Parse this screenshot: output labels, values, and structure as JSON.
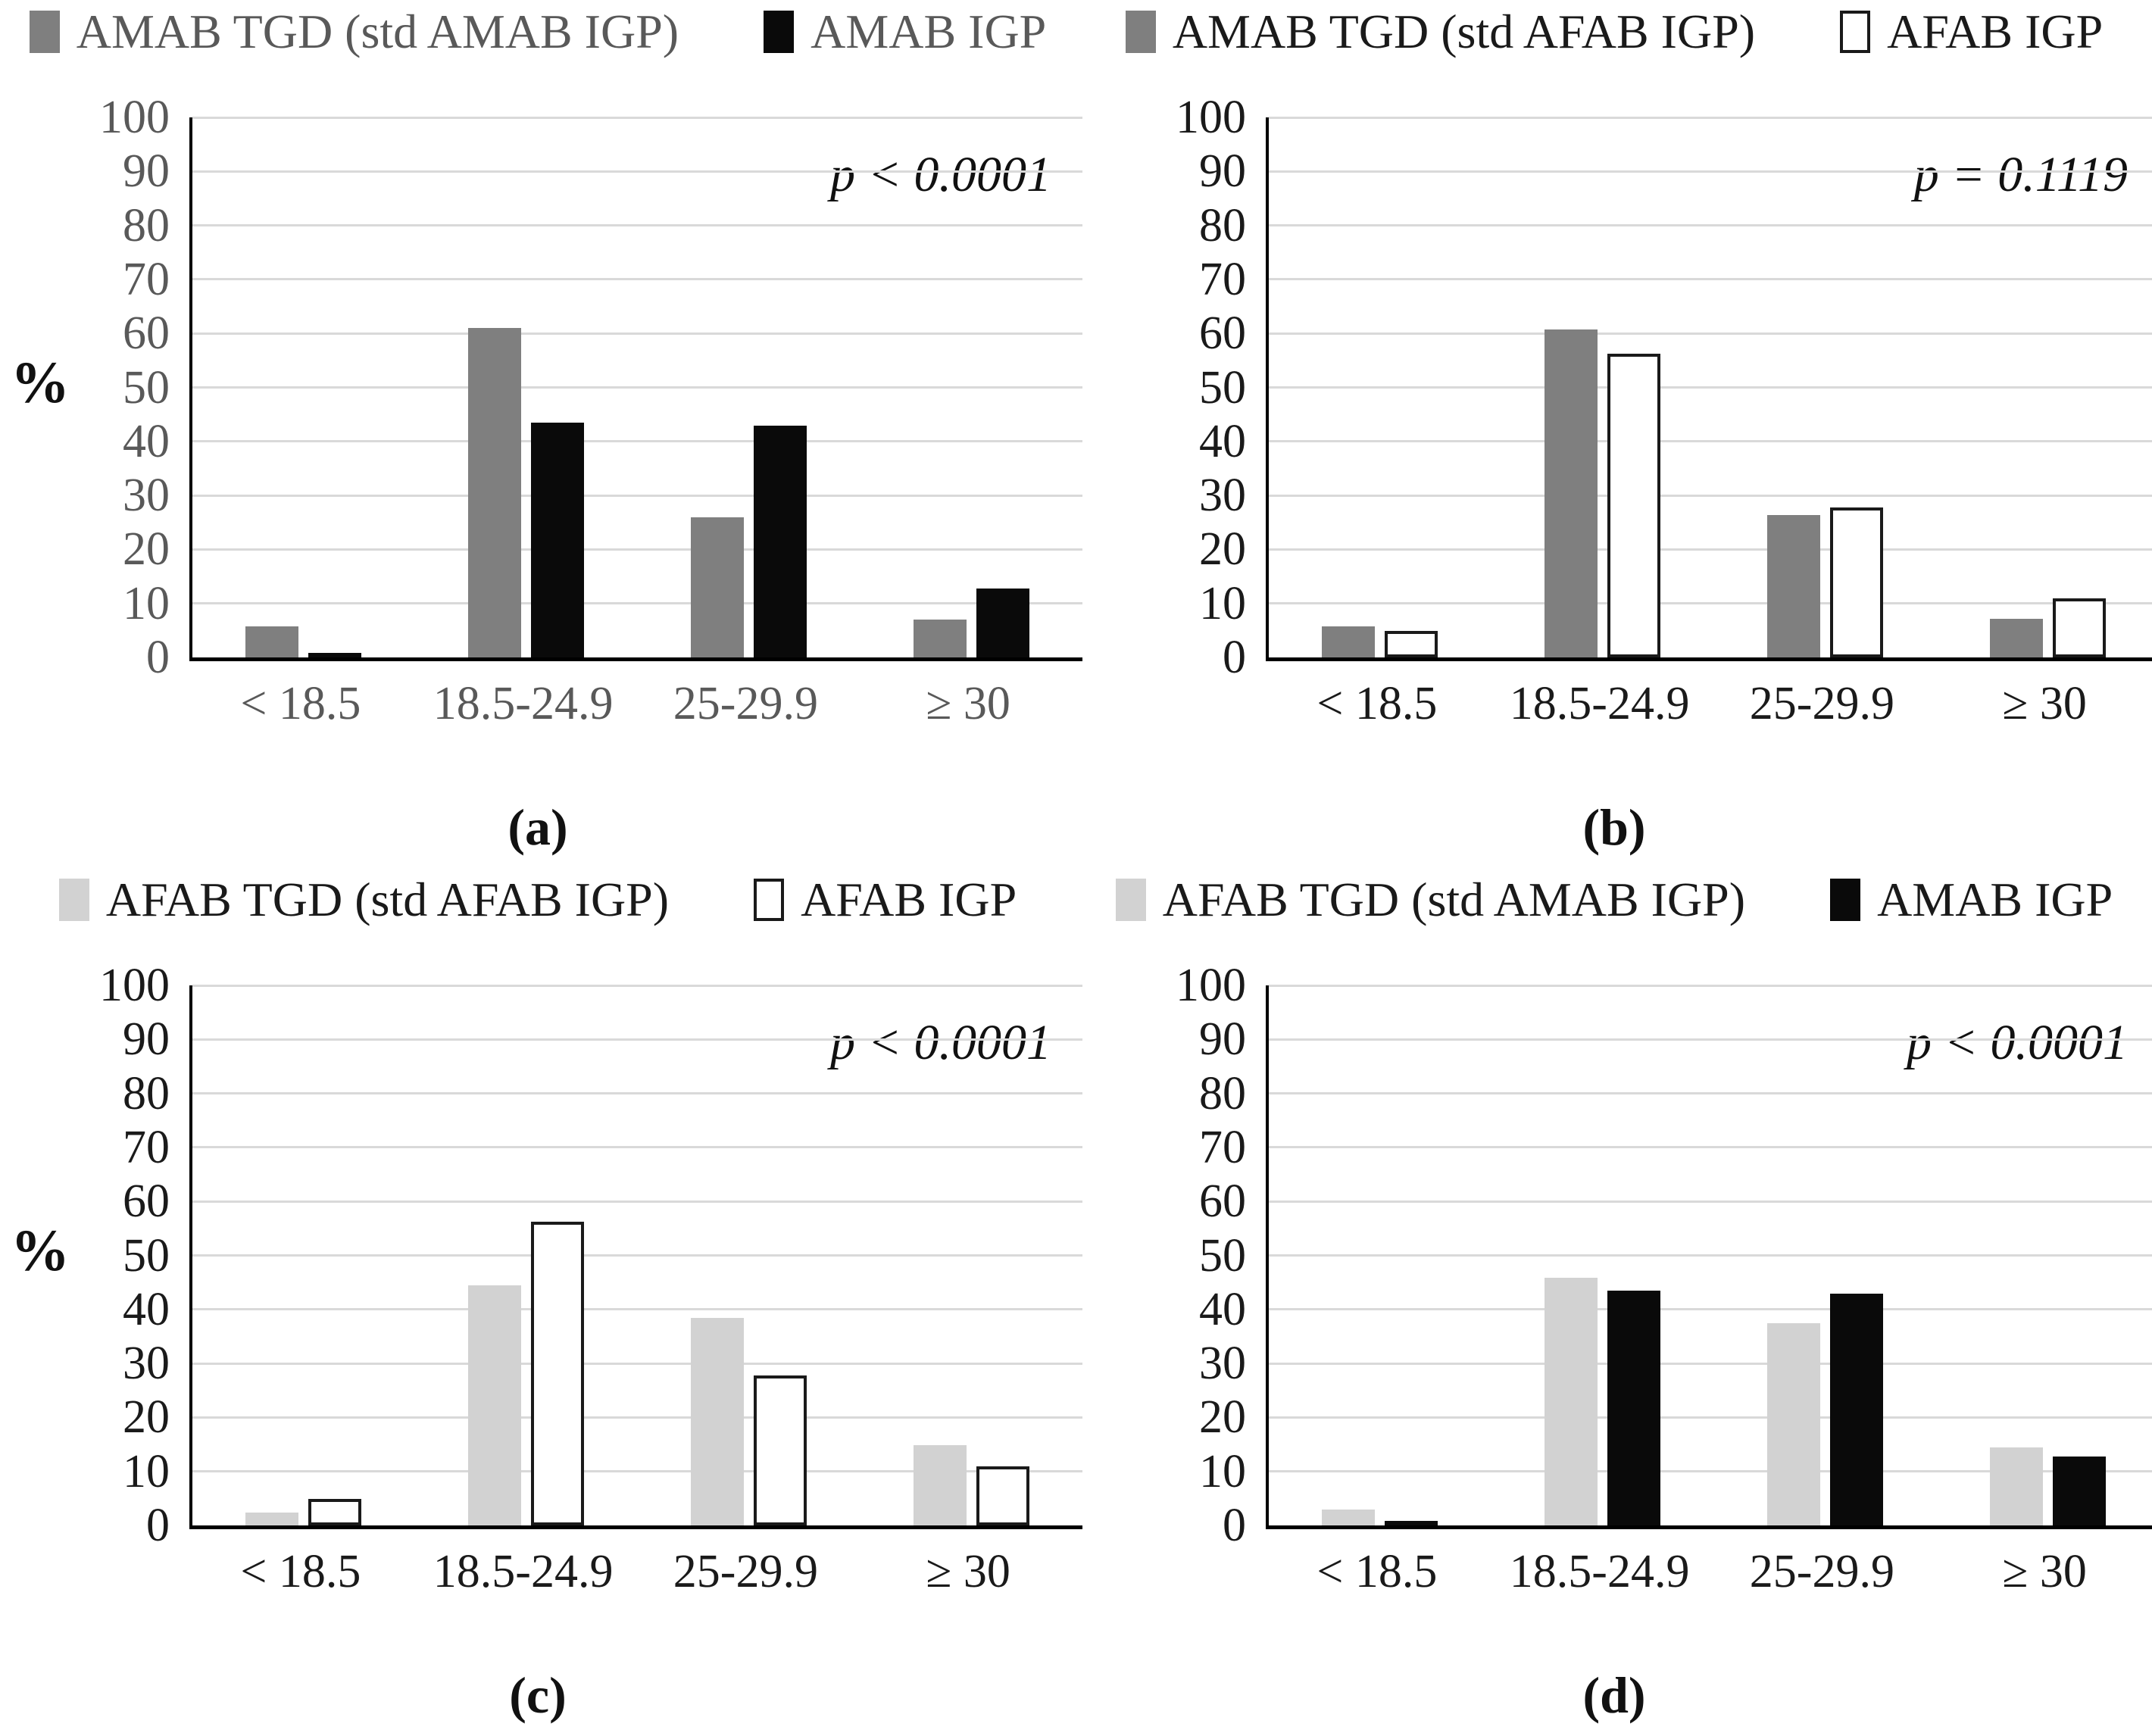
{
  "figure": {
    "categories": [
      "< 18.5",
      "18.5-24.9",
      "25-29.9",
      "≥ 30"
    ],
    "y_axis": {
      "min": 0,
      "max": 100,
      "step": 10,
      "unit_label": "%",
      "tick_labels": [
        "0",
        "10",
        "20",
        "30",
        "40",
        "50",
        "60",
        "70",
        "80",
        "90",
        "100"
      ]
    },
    "colors": {
      "dark_gray_bar": "#7f7f7f",
      "light_gray_bar": "#d2d2d2",
      "black_bar": "#0a0a0a",
      "white_bar": "#ffffff",
      "white_bar_border": "#1a1a1a",
      "gridline": "#d9d9d9",
      "panel_a_text": "#595959",
      "default_text": "#1a1a1a"
    }
  },
  "chart_data": [
    {
      "panel_label": "(a)",
      "type": "bar",
      "title": "",
      "p_value": "p < 0.0001",
      "text_color": "#595959",
      "ylim": [
        0,
        100
      ],
      "grid": true,
      "legend_position": "top",
      "categories": [
        "< 18.5",
        "18.5-24.9",
        "25-29.9",
        "≥ 30"
      ],
      "series": [
        {
          "name": "AMAB TGD (std AMAB IGP)",
          "fill": "#7f7f7f",
          "values": [
            5.8,
            61,
            26,
            7
          ]
        },
        {
          "name": "AMAB IGP",
          "fill": "#0a0a0a",
          "values": [
            0.9,
            43.5,
            42.9,
            12.7
          ]
        }
      ]
    },
    {
      "panel_label": "(b)",
      "type": "bar",
      "title": "",
      "p_value": "p = 0.1119",
      "text_color": "#1a1a1a",
      "ylim": [
        0,
        100
      ],
      "grid": true,
      "legend_position": "top",
      "categories": [
        "< 18.5",
        "18.5-24.9",
        "25-29.9",
        "≥ 30"
      ],
      "series": [
        {
          "name": "AMAB TGD (std AFAB IGP)",
          "fill": "#7f7f7f",
          "values": [
            5.8,
            60.7,
            26.3,
            7.2
          ]
        },
        {
          "name": "AFAB IGP",
          "fill": "#ffffff",
          "border": "#1a1a1a",
          "values": [
            4.9,
            56.3,
            27.8,
            11
          ]
        }
      ]
    },
    {
      "panel_label": "(c)",
      "type": "bar",
      "title": "",
      "p_value": "p < 0.0001",
      "text_color": "#1a1a1a",
      "ylim": [
        0,
        100
      ],
      "grid": true,
      "legend_position": "top",
      "categories": [
        "< 18.5",
        "18.5-24.9",
        "25-29.9",
        "≥ 30"
      ],
      "series": [
        {
          "name": "AFAB TGD (std AFAB IGP)",
          "fill": "#d2d2d2",
          "values": [
            2.4,
            44.4,
            38.4,
            14.8
          ]
        },
        {
          "name": "AFAB IGP",
          "fill": "#ffffff",
          "border": "#1a1a1a",
          "values": [
            4.9,
            56.3,
            27.8,
            11
          ]
        }
      ]
    },
    {
      "panel_label": "(d)",
      "type": "bar",
      "title": "",
      "p_value": "p < 0.0001",
      "text_color": "#1a1a1a",
      "ylim": [
        0,
        100
      ],
      "grid": true,
      "legend_position": "top",
      "categories": [
        "< 18.5",
        "18.5-24.9",
        "25-29.9",
        "≥ 30"
      ],
      "series": [
        {
          "name": "AFAB TGD (std AMAB IGP)",
          "fill": "#d2d2d2",
          "values": [
            2.9,
            45.9,
            37.5,
            14.4
          ]
        },
        {
          "name": "AMAB IGP",
          "fill": "#0a0a0a",
          "values": [
            0.9,
            43.5,
            42.9,
            12.7
          ]
        }
      ]
    }
  ]
}
